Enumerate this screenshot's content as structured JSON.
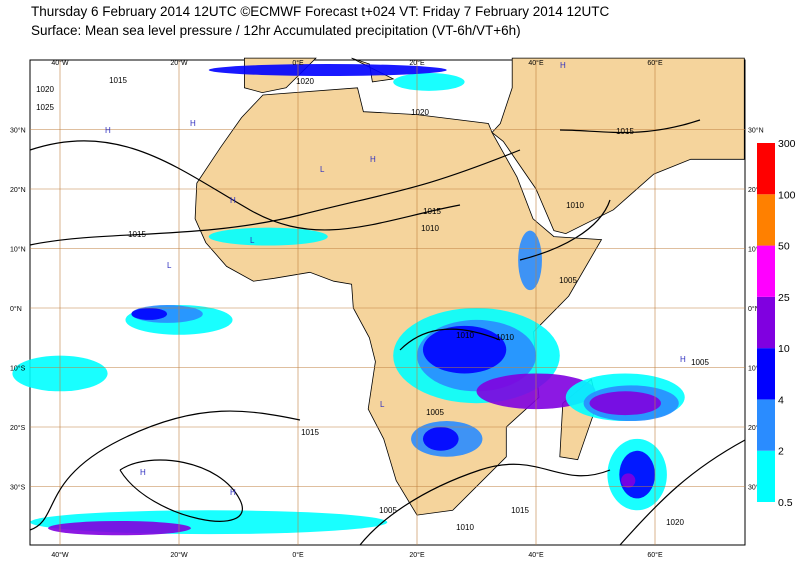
{
  "title": "Thursday 6 February 2014 12UTC ©ECMWF Forecast t+024 VT: Friday 7 February 2014 12UTC",
  "subtitle": "Surface: Mean sea level pressure / 12hr Accumulated precipitation (VT-6h/VT+6h)",
  "longitudes": [
    "40°W",
    "20°W",
    "0°E",
    "20°E",
    "40°E",
    "60°E"
  ],
  "latitudes": [
    "30°N",
    "20°N",
    "10°N",
    "0°N",
    "10°S",
    "20°S",
    "30°S"
  ],
  "colorbar": {
    "levels": [
      0.5,
      2,
      4,
      10,
      25,
      50,
      100,
      300
    ],
    "colors": [
      "#00ffff",
      "#2a8cff",
      "#0000ff",
      "#8000e0",
      "#ff00ff",
      "#ff8000",
      "#ff0000"
    ]
  },
  "isobar_labels": [
    "1015",
    "1020",
    "1025",
    "1020",
    "1020",
    "1015",
    "1015",
    "1010",
    "1015",
    "1010",
    "1005",
    "1010",
    "1010",
    "1005",
    "1015",
    "1005",
    "1015",
    "1010",
    "1005",
    "1020"
  ],
  "pressure_centers": [
    "H",
    "H",
    "H",
    "L",
    "H",
    "H",
    "L",
    "L",
    "H",
    "H",
    "L",
    "H"
  ]
}
